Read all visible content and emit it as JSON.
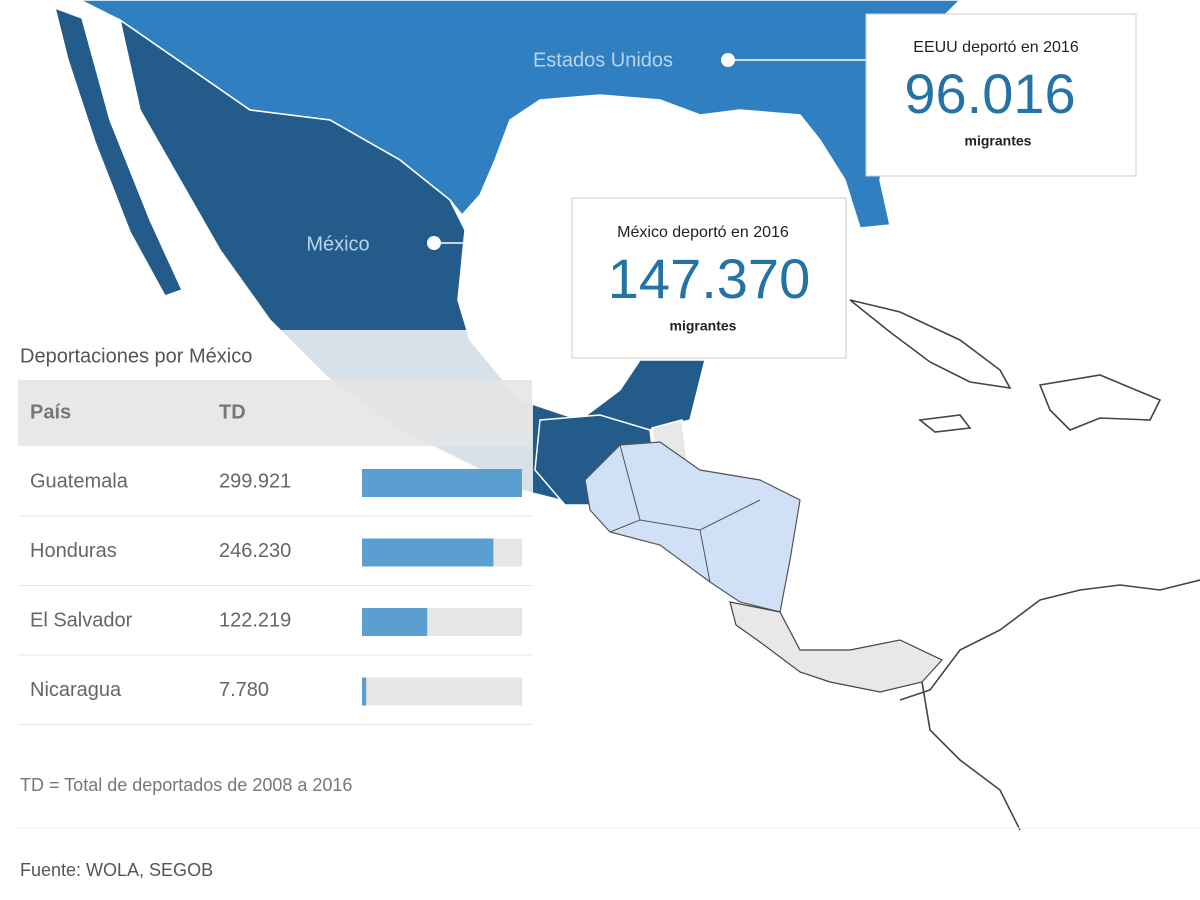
{
  "map": {
    "labels": [
      "Estados Unidos",
      "México"
    ]
  },
  "callouts": [
    {
      "heading": "EEUU deportó en 2016",
      "figure": "96.016",
      "unit": "migrantes"
    },
    {
      "heading": "México deportó en 2016",
      "figure": "147.370",
      "unit": "migrantes"
    }
  ],
  "table": {
    "title": "Deportaciones por México",
    "columns": [
      "País",
      "TD"
    ],
    "rows": [
      {
        "country": "Guatemala",
        "td": {
          "value": 299921,
          "label": "299.921"
        }
      },
      {
        "country": "Honduras",
        "td": {
          "value": 246230,
          "label": "246.230"
        }
      },
      {
        "country": "El Salvador",
        "td": {
          "value": 122219,
          "label": "122.219"
        }
      },
      {
        "country": "Nicaragua",
        "td": {
          "value": 7780,
          "label": "7.780"
        }
      }
    ]
  },
  "footnote": "TD = Total de deportados de 2008 a 2016",
  "source": "Fuente: WOLA, SEGOB"
}
